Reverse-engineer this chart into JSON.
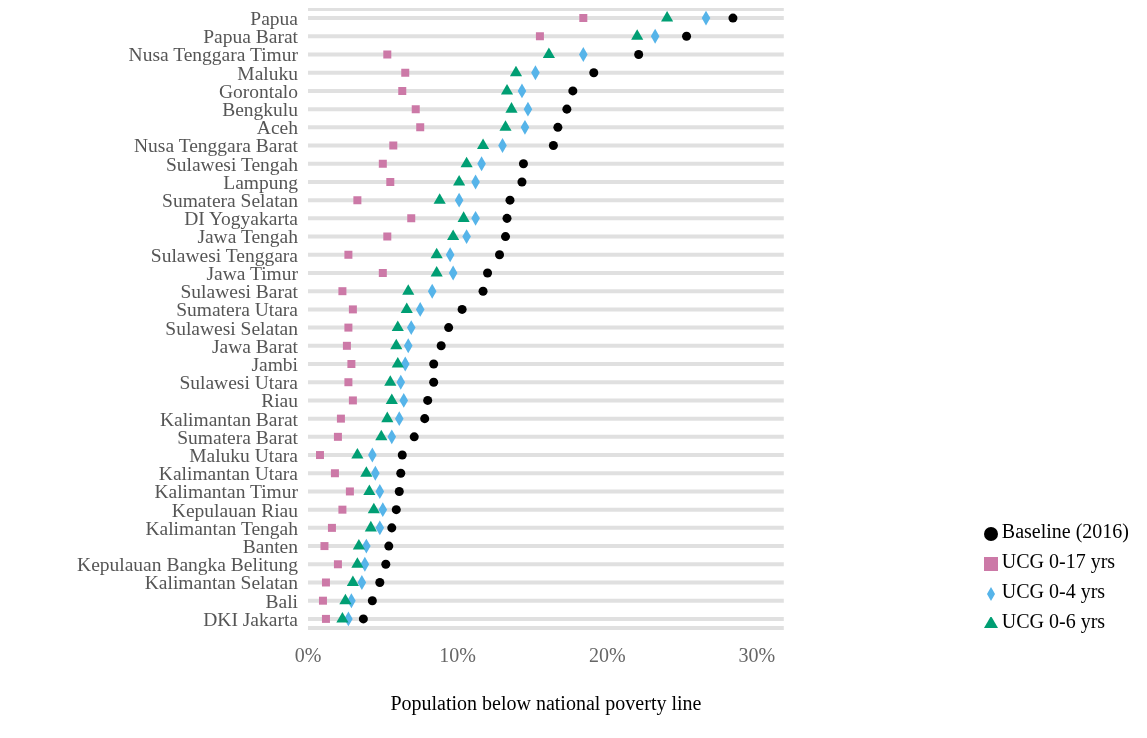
{
  "chart_data": {
    "type": "scatter",
    "orientation": "horizontal",
    "xlabel": "Population below national poverty line",
    "categories": [
      "Papua",
      "Papua Barat",
      "Nusa Tenggara Timur",
      "Maluku",
      "Gorontalo",
      "Bengkulu",
      "Aceh",
      "Nusa Tenggara Barat",
      "Sulawesi Tengah",
      "Lampung",
      "Sumatera Selatan",
      "DI Yogyakarta",
      "Jawa Tengah",
      "Sulawesi Tenggara",
      "Jawa Timur",
      "Sulawesi Barat",
      "Sumatera Utara",
      "Sulawesi Selatan",
      "Jawa Barat",
      "Jambi",
      "Sulawesi Utara",
      "Riau",
      "Kalimantan Barat",
      "Sumatera Barat",
      "Maluku Utara",
      "Kalimantan Utara",
      "Kalimantan Timur",
      "Kepulauan Riau",
      "Kalimantan Tengah",
      "Banten",
      "Kepulauan Bangka Belitung",
      "Kalimantan Selatan",
      "Bali",
      "DKI Jakarta"
    ],
    "series": [
      {
        "name": "Baseline (2016)",
        "color": "#000000",
        "marker": "circle",
        "values": [
          28.4,
          25.3,
          22.1,
          19.1,
          17.7,
          17.3,
          16.7,
          16.4,
          14.4,
          14.3,
          13.5,
          13.3,
          13.2,
          12.8,
          12.0,
          11.7,
          10.3,
          9.4,
          8.9,
          8.4,
          8.4,
          8.0,
          7.8,
          7.1,
          6.3,
          6.2,
          6.1,
          5.9,
          5.6,
          5.4,
          5.2,
          4.8,
          4.3,
          3.7
        ]
      },
      {
        "name": "UCG 0-4 yrs",
        "color": "#56b4e9",
        "marker": "diamond",
        "values": [
          26.6,
          23.2,
          18.4,
          15.2,
          14.3,
          14.7,
          14.5,
          13.0,
          11.6,
          11.2,
          10.1,
          11.2,
          10.6,
          9.5,
          9.7,
          8.3,
          7.5,
          6.9,
          6.7,
          6.5,
          6.2,
          6.4,
          6.1,
          5.6,
          4.3,
          4.5,
          4.8,
          5.0,
          4.8,
          3.9,
          3.8,
          3.6,
          2.9,
          2.7
        ]
      },
      {
        "name": "UCG 0-6 yrs",
        "color": "#009e73",
        "marker": "triangle",
        "values": [
          24.0,
          22.0,
          16.1,
          13.9,
          13.3,
          13.6,
          13.2,
          11.7,
          10.6,
          10.1,
          8.8,
          10.4,
          9.7,
          8.6,
          8.6,
          6.7,
          6.6,
          6.0,
          5.9,
          6.0,
          5.5,
          5.6,
          5.3,
          4.9,
          3.3,
          3.9,
          4.1,
          4.4,
          4.2,
          3.4,
          3.3,
          3.0,
          2.5,
          2.3
        ]
      },
      {
        "name": "UCG 0-17 yrs",
        "color": "#cc79a7",
        "marker": "square",
        "values": [
          18.4,
          15.5,
          5.3,
          6.5,
          6.3,
          7.2,
          7.5,
          5.7,
          5.0,
          5.5,
          3.3,
          6.9,
          5.3,
          2.7,
          5.0,
          2.3,
          3.0,
          2.7,
          2.6,
          2.9,
          2.7,
          3.0,
          2.2,
          2.0,
          0.8,
          1.8,
          2.8,
          2.3,
          1.6,
          1.1,
          2.0,
          1.2,
          1.0,
          1.2
        ]
      }
    ],
    "xlim": [
      0,
      31.8
    ],
    "xticks": [
      {
        "value": 0,
        "label": "0%"
      },
      {
        "value": 10,
        "label": "10%"
      },
      {
        "value": 20,
        "label": "20%"
      },
      {
        "value": 30,
        "label": "30%"
      }
    ],
    "grid": "y",
    "legend": "right"
  }
}
